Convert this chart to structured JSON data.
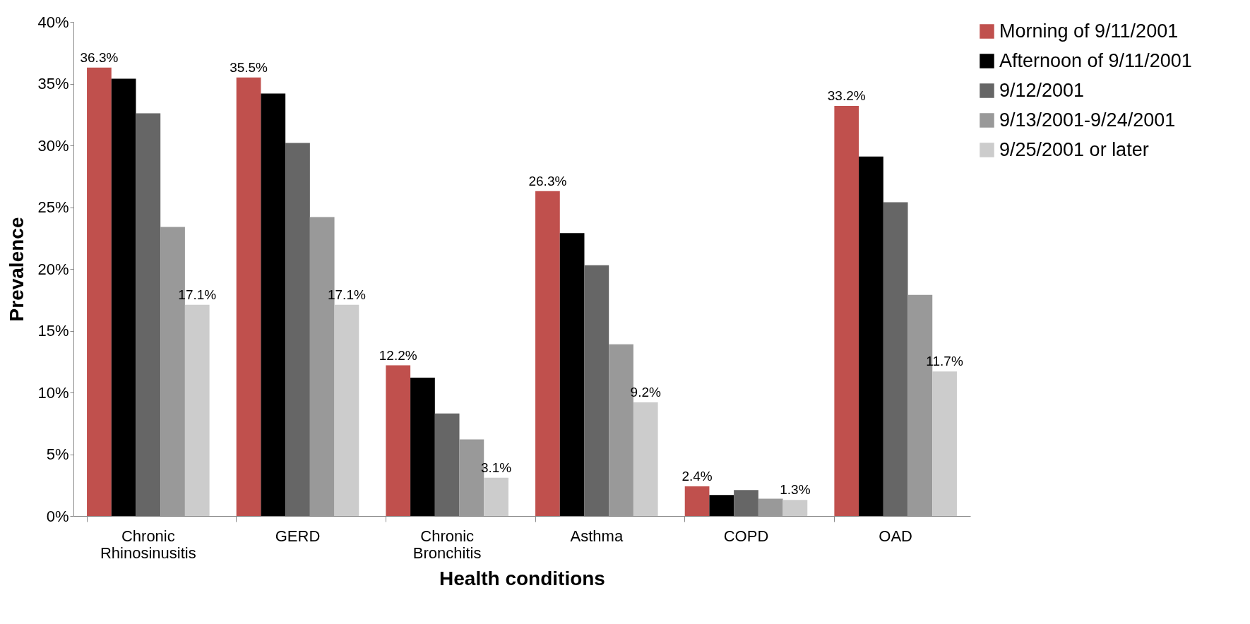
{
  "chart_data": {
    "type": "bar",
    "xlabel": "Health conditions",
    "ylabel": "Prevalence",
    "categories": [
      "Chronic Rhinosinusitis",
      "GERD",
      "Chronic Bronchitis",
      "Asthma",
      "COPD",
      "OAD"
    ],
    "series": [
      {
        "name": "Morning of 9/11/2001",
        "color": "#c0504d",
        "values": [
          36.3,
          35.5,
          12.2,
          26.3,
          2.4,
          33.2
        ],
        "value_labels": [
          "36.3%",
          "35.5%",
          "12.2%",
          "26.3%",
          "2.4%",
          "33.2%"
        ]
      },
      {
        "name": "Afternoon of 9/11/2001",
        "color": "#000000",
        "values": [
          35.4,
          34.2,
          11.2,
          22.9,
          1.7,
          29.1
        ]
      },
      {
        "name": "9/12/2001",
        "color": "#666666",
        "values": [
          32.6,
          30.2,
          8.3,
          20.3,
          2.1,
          25.4
        ]
      },
      {
        "name": "9/13/2001-9/24/2001",
        "color": "#999999",
        "values": [
          23.4,
          24.2,
          6.2,
          13.9,
          1.4,
          17.9
        ]
      },
      {
        "name": "9/25/2001 or later",
        "color": "#cccccc",
        "values": [
          17.1,
          17.1,
          3.1,
          9.2,
          1.3,
          11.7
        ],
        "value_labels": [
          "17.1%",
          "17.1%",
          "3.1%",
          "9.2%",
          "1.3%",
          "11.7%"
        ]
      }
    ],
    "ylim": [
      0,
      40
    ],
    "yticks": [
      {
        "value": 0,
        "label": "0%"
      },
      {
        "value": 5,
        "label": "5%"
      },
      {
        "value": 10,
        "label": "10%"
      },
      {
        "value": 15,
        "label": "15%"
      },
      {
        "value": 20,
        "label": "20%"
      },
      {
        "value": 25,
        "label": "25%"
      },
      {
        "value": 30,
        "label": "30%"
      },
      {
        "value": 35,
        "label": "35%"
      },
      {
        "value": 40,
        "label": "40%"
      }
    ],
    "grid": false,
    "legend": "top right"
  }
}
